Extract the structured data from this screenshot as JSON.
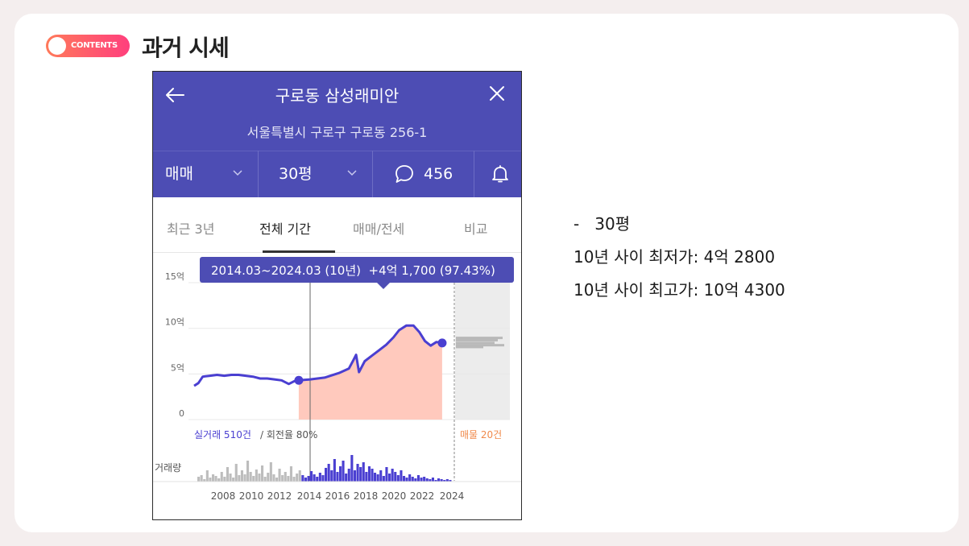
{
  "section": {
    "badge": "CONTENTS",
    "title": "과거 시세"
  },
  "app": {
    "apartment_name": "구로동 삼성래미안",
    "address": "서울특별시 구로구 구로동 256-1",
    "trade_type": "매매",
    "size": "30평",
    "comment_count": "456",
    "tabs": [
      "최근 3년",
      "전체 기간",
      "매매/전세",
      "비교"
    ],
    "active_tab": "전체 기간",
    "tooltip": "2014.03~2024.03 (10년)  +4억 1,700 (97.43%)",
    "y_ticks": [
      "15억",
      "10억",
      "5억",
      "0"
    ],
    "x_ticks": [
      "2008",
      "2010",
      "2012",
      "2014",
      "2016",
      "2018",
      "2020",
      "2022",
      "2024"
    ],
    "transactions_label": "실거래 510건",
    "turnover_label": "/ 회전율 80%",
    "listings_label": "매물 20건",
    "volume_label": "거래량",
    "colors": {
      "header": "#4d4db4",
      "line": "#4a3fd1",
      "fill": "#ffc9bd",
      "listing": "#f08a4b"
    }
  },
  "notes": {
    "line1": "-   30평",
    "line2": "10년 사이 최저가: 4억 2800",
    "line3": "10년 사이 최고가: 10억 4300"
  },
  "chart_data": {
    "type": "line",
    "x_axis_labels": [
      "2008",
      "2010",
      "2012",
      "2014",
      "2016",
      "2018",
      "2020",
      "2022",
      "2024"
    ],
    "y_axis_labels": [
      "0",
      "5억",
      "10억",
      "15억"
    ],
    "ylim": [
      0,
      15
    ],
    "y_unit": "억",
    "series": [
      {
        "values": [
          [
            2006.9,
            3.7
          ],
          [
            2007.2,
            4.0
          ],
          [
            2007.5,
            4.7
          ],
          [
            2008.0,
            4.8
          ],
          [
            2008.5,
            4.9
          ],
          [
            2009.0,
            4.8
          ],
          [
            2009.5,
            4.9
          ],
          [
            2010.0,
            4.9
          ],
          [
            2010.5,
            4.8
          ],
          [
            2011.0,
            4.7
          ],
          [
            2011.5,
            4.5
          ],
          [
            2012.0,
            4.5
          ],
          [
            2012.5,
            4.4
          ],
          [
            2013.0,
            4.3
          ],
          [
            2013.5,
            3.9
          ],
          [
            2014.0,
            4.3
          ],
          [
            2014.2,
            4.3
          ],
          [
            2015.0,
            4.4
          ],
          [
            2016.0,
            4.6
          ],
          [
            2017.0,
            5.1
          ],
          [
            2017.7,
            5.6
          ],
          [
            2018.0,
            6.5
          ],
          [
            2018.2,
            7.1
          ],
          [
            2018.4,
            5.2
          ],
          [
            2018.8,
            6.4
          ],
          [
            2019.3,
            7.0
          ],
          [
            2019.8,
            7.6
          ],
          [
            2020.3,
            8.2
          ],
          [
            2020.8,
            9.0
          ],
          [
            2021.2,
            9.8
          ],
          [
            2021.7,
            10.3
          ],
          [
            2022.2,
            10.3
          ],
          [
            2022.6,
            9.6
          ],
          [
            2023.0,
            8.6
          ],
          [
            2023.4,
            8.1
          ],
          [
            2023.8,
            8.5
          ],
          [
            2024.2,
            8.4
          ]
        ]
      }
    ],
    "highlight_range": [
      "2014.03",
      "2024.03"
    ],
    "change": "+4억 1,700 (97.43%)"
  }
}
